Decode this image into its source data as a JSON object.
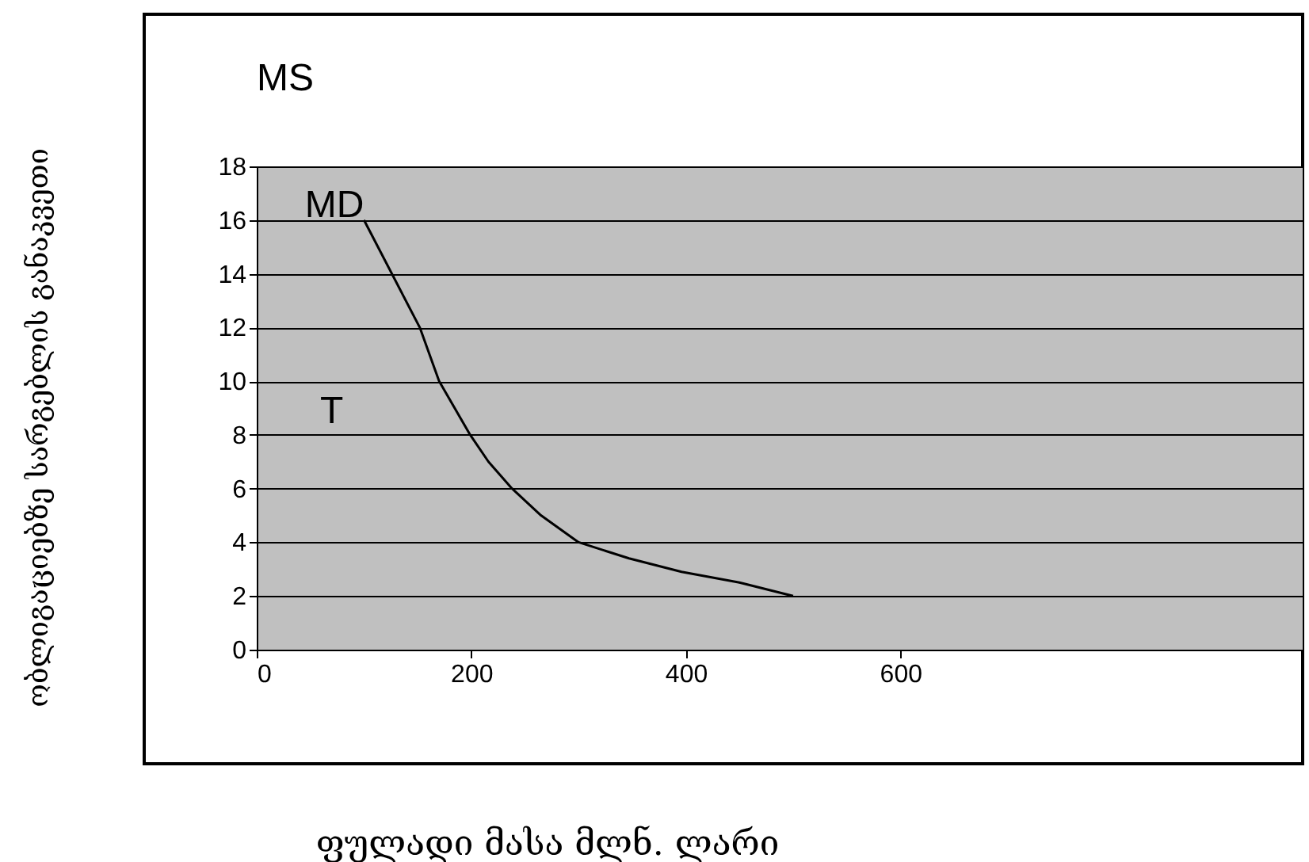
{
  "chart_data": {
    "type": "line",
    "xlabel": "ფულადი მასა მლნ. ლარი",
    "annotations": [
      "MS",
      {
        "text": "MD",
        "x": 100,
        "y": 16
      },
      "T",
      "ობლიგაციებზე სარგებლის განაკვეთი"
    ],
    "x": [
      100,
      152,
      170,
      199,
      216,
      238,
      265,
      300,
      347,
      396,
      450,
      500
    ],
    "series": [
      {
        "color": "#000000",
        "values": [
          16,
          12,
          10,
          8,
          7,
          6,
          5,
          4,
          3.4,
          2.9,
          2.5,
          2
        ]
      }
    ],
    "xlim": [
      0,
      975
    ],
    "xticks": [
      0,
      200,
      400,
      600
    ],
    "ylim": [
      0,
      18
    ],
    "yticks": [
      0,
      2,
      4,
      6,
      8,
      10,
      12,
      14,
      16,
      18
    ],
    "grid": "y",
    "legend": false,
    "marker": "none",
    "line_style": "solid"
  }
}
